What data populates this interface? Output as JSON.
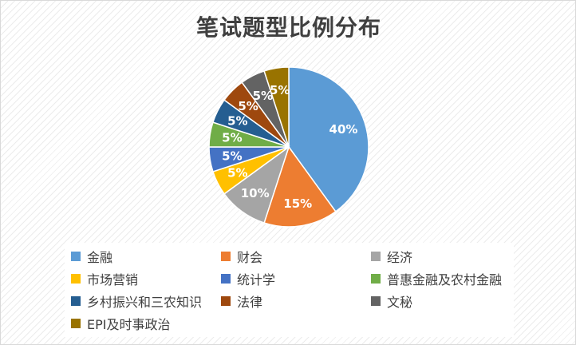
{
  "chart_data": {
    "type": "pie",
    "title": "笔试题型比例分布",
    "slices": [
      {
        "label": "金融",
        "value": 40,
        "display": "40%",
        "color": "#5b9bd5"
      },
      {
        "label": "财会",
        "value": 15,
        "display": "15%",
        "color": "#ed7d31"
      },
      {
        "label": "经济",
        "value": 10,
        "display": "10%",
        "color": "#a5a5a5"
      },
      {
        "label": "市场营销",
        "value": 5,
        "display": "5%",
        "color": "#ffc000"
      },
      {
        "label": "统计学",
        "value": 5,
        "display": "5%",
        "color": "#4472c4"
      },
      {
        "label": "普惠金融及农村金融",
        "value": 5,
        "display": "5%",
        "color": "#70ad47"
      },
      {
        "label": "乡村振兴和三农知识",
        "value": 5,
        "display": "5%",
        "color": "#255e91"
      },
      {
        "label": "法律",
        "value": 5,
        "display": "5%",
        "color": "#9e480e"
      },
      {
        "label": "文秘",
        "value": 5,
        "display": "5%",
        "color": "#636363"
      },
      {
        "label": "EPI及时事政治",
        "value": 5,
        "display": "5%",
        "color": "#997300"
      }
    ],
    "legend_position": "bottom"
  }
}
